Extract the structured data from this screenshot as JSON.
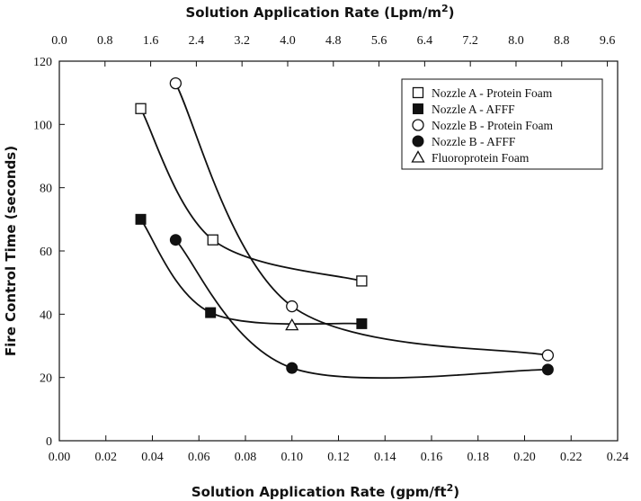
{
  "chart_data": {
    "type": "scatter",
    "title": "",
    "xlabel": "Solution Application Rate (gpm/ft",
    "xlabel_sup": "2",
    "xlabel_end": ")",
    "x2label": "Solution Application Rate (Lpm/m",
    "x2label_sup": "2",
    "x2label_end": ")",
    "ylabel": "Fire Control Time (seconds)",
    "xlim": [
      0.0,
      0.24
    ],
    "ylim": [
      0,
      120
    ],
    "x2lim": [
      0.0,
      9.78
    ],
    "x_ticks": [
      "0.00",
      "0.02",
      "0.04",
      "0.06",
      "0.08",
      "0.10",
      "0.12",
      "0.14",
      "0.16",
      "0.18",
      "0.20",
      "0.22",
      "0.24"
    ],
    "x2_ticks": [
      "0.0",
      "0.8",
      "1.6",
      "2.4",
      "3.2",
      "4.0",
      "4.8",
      "5.6",
      "6.4",
      "7.2",
      "8.0",
      "8.8",
      "9.6"
    ],
    "y_ticks": [
      "0",
      "20",
      "40",
      "60",
      "80",
      "100",
      "120"
    ],
    "grid": false,
    "legend_position": "top-right",
    "series": [
      {
        "name": "Nozzle A - Protein Foam",
        "marker": "square-open",
        "x": [
          0.035,
          0.066,
          0.13
        ],
        "y": [
          105,
          63.5,
          50.5
        ],
        "curve": true
      },
      {
        "name": "Nozzle A - AFFF",
        "marker": "square-filled",
        "x": [
          0.035,
          0.065,
          0.13
        ],
        "y": [
          70,
          40.5,
          37
        ],
        "curve": true
      },
      {
        "name": "Nozzle B - Protein Foam",
        "marker": "circle-open",
        "x": [
          0.05,
          0.1,
          0.21
        ],
        "y": [
          113,
          42.5,
          27
        ],
        "curve": true
      },
      {
        "name": "Nozzle B - AFFF",
        "marker": "circle-filled",
        "x": [
          0.05,
          0.1,
          0.21
        ],
        "y": [
          63.5,
          23,
          22.5
        ],
        "curve": true
      },
      {
        "name": "Fluoroprotein Foam",
        "marker": "triangle-open",
        "x": [
          0.1
        ],
        "y": [
          36.5
        ],
        "curve": false
      }
    ]
  }
}
